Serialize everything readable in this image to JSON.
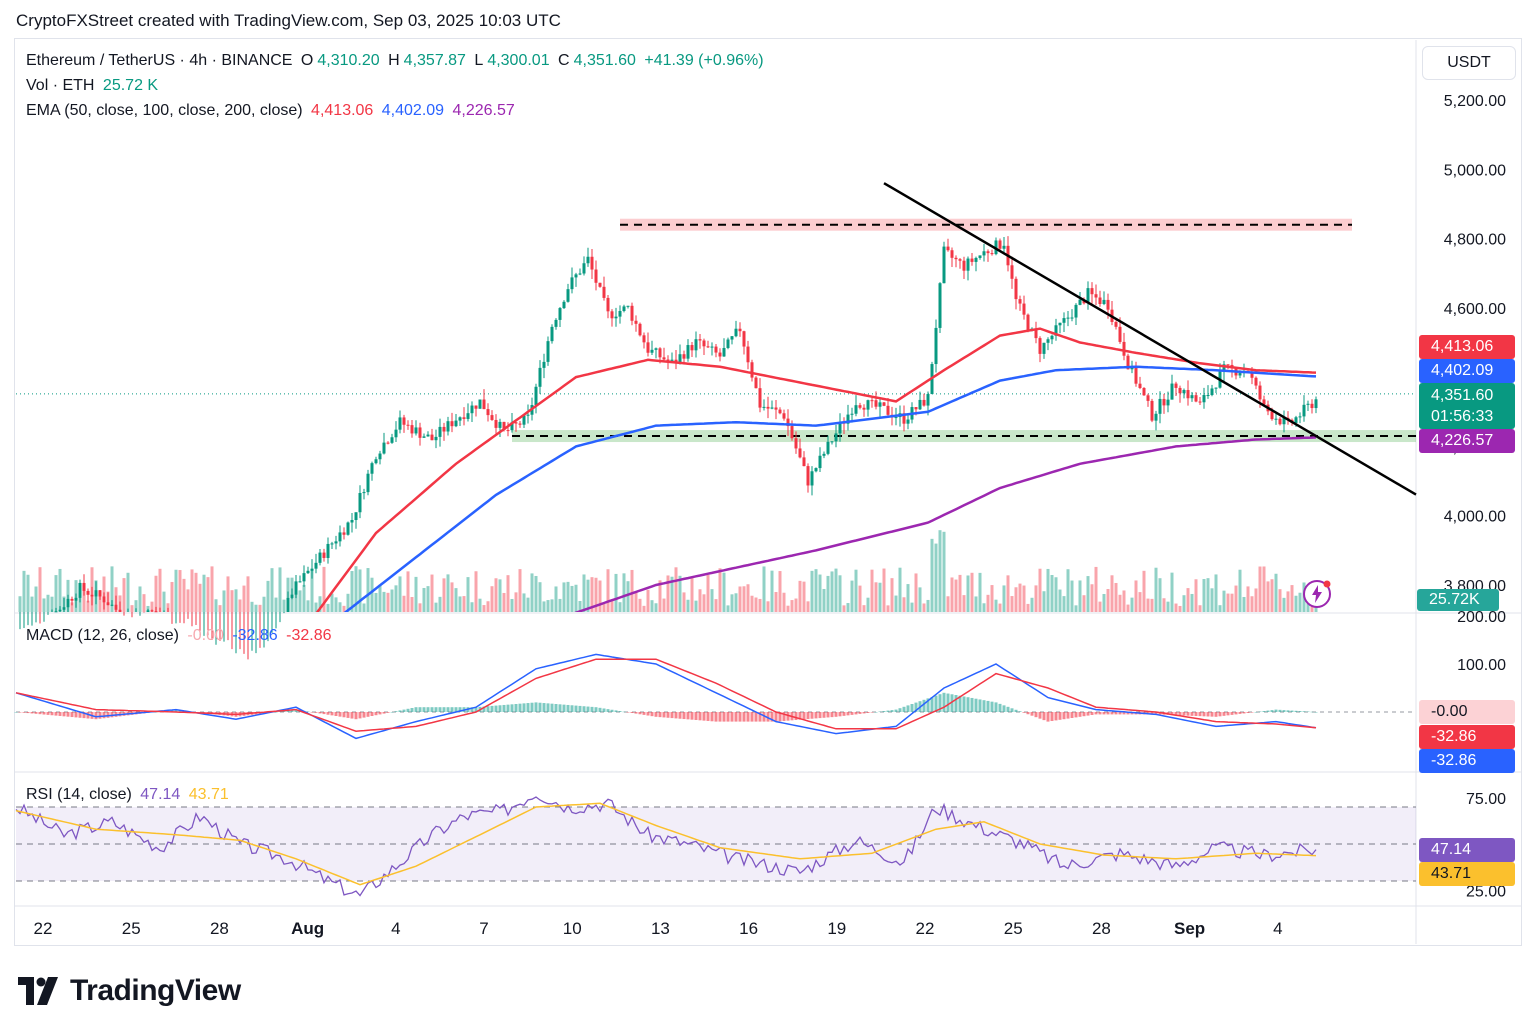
{
  "header": "CryptoFXStreet created with TradingView.com, Sep 03, 2025 10:03 UTC",
  "symbol": {
    "name": "Ethereum / TetherUS · 4h · BINANCE",
    "o_label": "O",
    "o": "4,310.20",
    "h_label": "H",
    "h": "4,357.87",
    "l_label": "L",
    "l": "4,300.01",
    "c_label": "C",
    "c": "4,351.60",
    "change": "+41.39 (+0.96%)"
  },
  "vol": {
    "label": "Vol · ETH",
    "value": "25.72 K"
  },
  "ema": {
    "label": "EMA (50, close, 100, close, 200, close)",
    "v50": "4,413.06",
    "v100": "4,402.09",
    "v200": "4,226.57"
  },
  "macd": {
    "label": "MACD (12, 26, close)",
    "hist": "-0.00",
    "macd": "-32.86",
    "signal": "-32.86"
  },
  "rsi": {
    "label": "RSI (14, close)",
    "rsi": "47.14",
    "ma": "43.71"
  },
  "currency": "USDT",
  "price_tags": {
    "ema50": "4,413.06",
    "ema100": "4,402.09",
    "last": "4,351.60",
    "countdown": "01:56:33",
    "ema200": "4,226.57",
    "volume": "25.72K",
    "macd_hist": "-0.00",
    "macd_signal": "-32.86",
    "macd_line": "-32.86",
    "rsi": "47.14",
    "rsi_ma": "43.71"
  },
  "colors": {
    "up": "#089981",
    "down": "#f23645",
    "ema50": "#f23645",
    "ema100": "#2962ff",
    "ema200": "#9c27b0",
    "rsi": "#7e57c2",
    "rsi_ma": "#fbc02d",
    "trend": "#000000"
  },
  "brand": "TradingView",
  "chart_data": [
    {
      "type": "candlestick",
      "title": "Ethereum / TetherUS · 4h · BINANCE",
      "x_ticks": [
        "22",
        "25",
        "28",
        "Aug",
        "4",
        "7",
        "10",
        "13",
        "16",
        "19",
        "22",
        "25",
        "28",
        "Sep",
        "4"
      ],
      "y_ticks": [
        3800,
        4000,
        4200,
        4400,
        4600,
        4800,
        5000,
        5200
      ],
      "ylim": [
        3720,
        5260
      ],
      "price_path": [
        [
          0,
          3650
        ],
        [
          8,
          3700
        ],
        [
          16,
          3790
        ],
        [
          22,
          3760
        ],
        [
          28,
          3700
        ],
        [
          34,
          3720
        ],
        [
          40,
          3680
        ],
        [
          48,
          3630
        ],
        [
          56,
          3580
        ],
        [
          64,
          3620
        ],
        [
          69,
          3780
        ],
        [
          76,
          3880
        ],
        [
          84,
          3990
        ],
        [
          90,
          4180
        ],
        [
          96,
          4270
        ],
        [
          104,
          4220
        ],
        [
          110,
          4280
        ],
        [
          116,
          4330
        ],
        [
          122,
          4240
        ],
        [
          128,
          4280
        ],
        [
          134,
          4550
        ],
        [
          138,
          4660
        ],
        [
          143,
          4740
        ],
        [
          148,
          4580
        ],
        [
          153,
          4600
        ],
        [
          158,
          4480
        ],
        [
          164,
          4440
        ],
        [
          170,
          4500
        ],
        [
          176,
          4460
        ],
        [
          181,
          4540
        ],
        [
          186,
          4320
        ],
        [
          192,
          4290
        ],
        [
          198,
          4100
        ],
        [
          204,
          4220
        ],
        [
          210,
          4330
        ],
        [
          216,
          4310
        ],
        [
          222,
          4280
        ],
        [
          228,
          4340
        ],
        [
          232,
          4760
        ],
        [
          237,
          4720
        ],
        [
          242,
          4760
        ],
        [
          247,
          4790
        ],
        [
          250,
          4620
        ],
        [
          256,
          4480
        ],
        [
          262,
          4560
        ],
        [
          268,
          4640
        ],
        [
          273,
          4610
        ],
        [
          278,
          4440
        ],
        [
          284,
          4290
        ],
        [
          290,
          4380
        ],
        [
          296,
          4320
        ],
        [
          302,
          4420
        ],
        [
          308,
          4420
        ],
        [
          312,
          4310
        ],
        [
          318,
          4260
        ],
        [
          325,
          4335
        ]
      ],
      "ema50_path": [
        [
          0,
          3620
        ],
        [
          20,
          3650
        ],
        [
          40,
          3640
        ],
        [
          56,
          3590
        ],
        [
          72,
          3670
        ],
        [
          90,
          3950
        ],
        [
          110,
          4150
        ],
        [
          128,
          4300
        ],
        [
          140,
          4400
        ],
        [
          158,
          4450
        ],
        [
          176,
          4430
        ],
        [
          198,
          4380
        ],
        [
          220,
          4330
        ],
        [
          232,
          4420
        ],
        [
          246,
          4520
        ],
        [
          256,
          4540
        ],
        [
          266,
          4500
        ],
        [
          280,
          4470
        ],
        [
          296,
          4440
        ],
        [
          310,
          4420
        ],
        [
          325,
          4413
        ]
      ],
      "ema100_path": [
        [
          60,
          3600
        ],
        [
          80,
          3700
        ],
        [
          100,
          3880
        ],
        [
          120,
          4060
        ],
        [
          140,
          4200
        ],
        [
          160,
          4260
        ],
        [
          180,
          4270
        ],
        [
          200,
          4260
        ],
        [
          228,
          4300
        ],
        [
          246,
          4390
        ],
        [
          260,
          4420
        ],
        [
          280,
          4430
        ],
        [
          300,
          4420
        ],
        [
          325,
          4402
        ]
      ],
      "ema200_path": [
        [
          120,
          3640
        ],
        [
          140,
          3720
        ],
        [
          160,
          3800
        ],
        [
          180,
          3850
        ],
        [
          200,
          3900
        ],
        [
          228,
          3980
        ],
        [
          246,
          4080
        ],
        [
          266,
          4150
        ],
        [
          290,
          4200
        ],
        [
          310,
          4220
        ],
        [
          325,
          4226
        ]
      ],
      "resistance": 4840,
      "support": 4230,
      "trendline": [
        [
          217,
          4960
        ],
        [
          325,
          4230
        ]
      ],
      "last_price": 4351.6
    },
    {
      "type": "bar",
      "title": "Vol · ETH",
      "last_value": "25.72K"
    },
    {
      "type": "line",
      "title": "MACD (12, 26, close)",
      "y_ticks": [
        100,
        200
      ],
      "series": [
        {
          "name": "MACD",
          "points": [
            [
              0,
              40
            ],
            [
              20,
              -10
            ],
            [
              40,
              5
            ],
            [
              55,
              -15
            ],
            [
              70,
              10
            ],
            [
              85,
              -55
            ],
            [
              100,
              -20
            ],
            [
              115,
              10
            ],
            [
              130,
              90
            ],
            [
              145,
              120
            ],
            [
              160,
              100
            ],
            [
              175,
              40
            ],
            [
              190,
              -20
            ],
            [
              205,
              -45
            ],
            [
              220,
              -30
            ],
            [
              232,
              50
            ],
            [
              245,
              100
            ],
            [
              258,
              30
            ],
            [
              270,
              5
            ],
            [
              285,
              -5
            ],
            [
              300,
              -30
            ],
            [
              315,
              -20
            ],
            [
              325,
              -32.86
            ]
          ]
        },
        {
          "name": "Signal",
          "points": [
            [
              0,
              40
            ],
            [
              20,
              5
            ],
            [
              40,
              0
            ],
            [
              55,
              -5
            ],
            [
              70,
              5
            ],
            [
              85,
              -40
            ],
            [
              100,
              -30
            ],
            [
              115,
              0
            ],
            [
              130,
              70
            ],
            [
              145,
              110
            ],
            [
              160,
              110
            ],
            [
              175,
              60
            ],
            [
              190,
              0
            ],
            [
              205,
              -35
            ],
            [
              220,
              -35
            ],
            [
              232,
              10
            ],
            [
              245,
              80
            ],
            [
              258,
              50
            ],
            [
              270,
              10
            ],
            [
              285,
              0
            ],
            [
              300,
              -20
            ],
            [
              315,
              -25
            ],
            [
              325,
              -32.86
            ]
          ]
        }
      ],
      "last_values": {
        "histogram": -0.0,
        "macd": -32.86,
        "signal": -32.86
      }
    },
    {
      "type": "line",
      "title": "RSI (14, close)",
      "y_ticks": [
        25,
        75
      ],
      "bands": [
        30,
        50,
        70
      ],
      "series": [
        {
          "name": "RSI",
          "points": [
            [
              0,
              70
            ],
            [
              12,
              55
            ],
            [
              24,
              62
            ],
            [
              36,
              48
            ],
            [
              46,
              65
            ],
            [
              56,
              50
            ],
            [
              68,
              42
            ],
            [
              78,
              30
            ],
            [
              86,
              22
            ],
            [
              96,
              40
            ],
            [
              104,
              55
            ],
            [
              112,
              65
            ],
            [
              122,
              68
            ],
            [
              130,
              78
            ],
            [
              138,
              70
            ],
            [
              148,
              72
            ],
            [
              158,
              55
            ],
            [
              168,
              50
            ],
            [
              180,
              42
            ],
            [
              196,
              35
            ],
            [
              210,
              52
            ],
            [
              222,
              40
            ],
            [
              230,
              70
            ],
            [
              240,
              60
            ],
            [
              252,
              50
            ],
            [
              262,
              38
            ],
            [
              276,
              45
            ],
            [
              290,
              38
            ],
            [
              300,
              48
            ],
            [
              312,
              44
            ],
            [
              325,
              47.14
            ]
          ]
        },
        {
          "name": "RSI MA",
          "points": [
            [
              0,
              68
            ],
            [
              20,
              58
            ],
            [
              40,
              55
            ],
            [
              56,
              52
            ],
            [
              70,
              42
            ],
            [
              86,
              28
            ],
            [
              100,
              38
            ],
            [
              116,
              55
            ],
            [
              130,
              70
            ],
            [
              146,
              72
            ],
            [
              160,
              60
            ],
            [
              176,
              48
            ],
            [
              196,
              42
            ],
            [
              214,
              45
            ],
            [
              230,
              58
            ],
            [
              242,
              62
            ],
            [
              256,
              50
            ],
            [
              272,
              44
            ],
            [
              290,
              42
            ],
            [
              310,
              45
            ],
            [
              325,
              43.71
            ]
          ]
        }
      ],
      "last_values": {
        "rsi": 47.14,
        "rsi_ma": 43.71
      }
    }
  ]
}
